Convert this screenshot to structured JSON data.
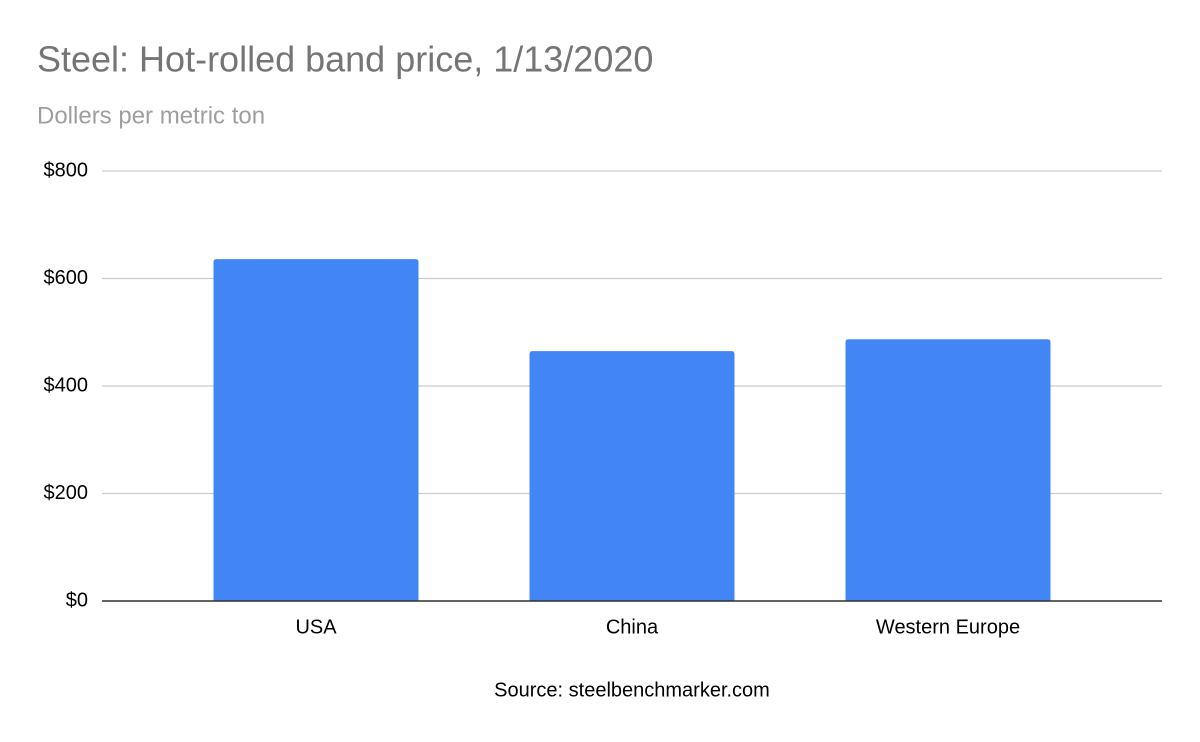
{
  "chart_data": {
    "type": "bar",
    "title": "Steel: Hot-rolled band price, 1/13/2020",
    "subtitle": "Dollers per metric ton",
    "annotation": "Source: steelbenchmarker.com",
    "categories": [
      "USA",
      "China",
      "Western Europe"
    ],
    "values": [
      636,
      465,
      487
    ],
    "color": "#4285f4",
    "ylim": [
      0,
      800
    ],
    "yticks": [
      {
        "value": 0,
        "label": "$0"
      },
      {
        "value": 200,
        "label": "$200"
      },
      {
        "value": 400,
        "label": "$400"
      },
      {
        "value": 600,
        "label": "$600"
      },
      {
        "value": 800,
        "label": "$800"
      }
    ],
    "grid": true
  }
}
